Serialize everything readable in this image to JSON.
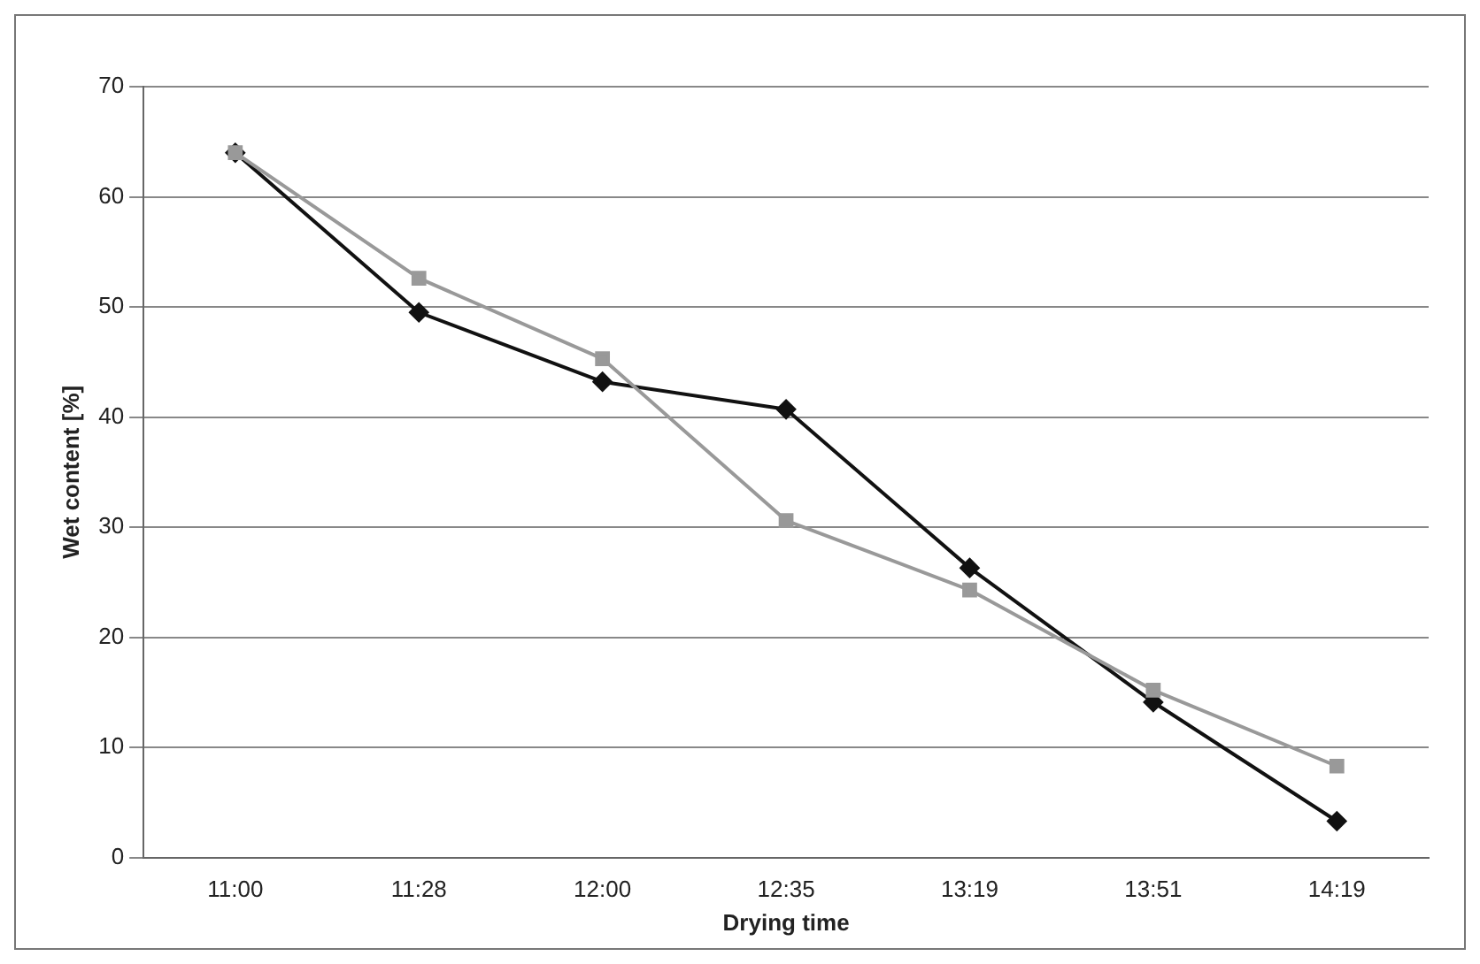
{
  "chart_data": {
    "type": "line",
    "xlabel": "Drying time",
    "ylabel": "Wet content [%]",
    "categories": [
      "11:00",
      "11:28",
      "12:00",
      "12:35",
      "13:19",
      "13:51",
      "14:19"
    ],
    "series": [
      {
        "color": "#111111",
        "marker": "diamond",
        "values": [
          64,
          49.5,
          43.2,
          40.7,
          26.3,
          14.1,
          3.3
        ]
      },
      {
        "color": "#999999",
        "marker": "square",
        "values": [
          64,
          52.6,
          45.3,
          30.6,
          24.3,
          15.2,
          8.3
        ]
      }
    ],
    "ylim": [
      0,
      70
    ],
    "yticks": [
      0,
      10,
      20,
      30,
      40,
      50,
      60,
      70
    ],
    "grid": "y",
    "legend": false,
    "line_style": "solid"
  }
}
